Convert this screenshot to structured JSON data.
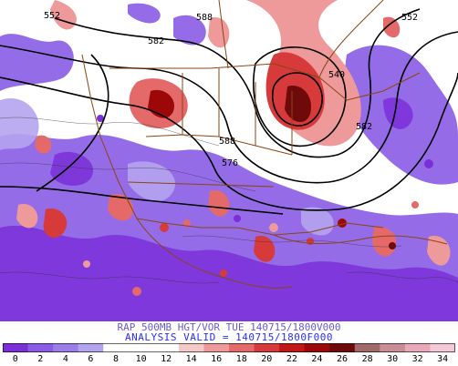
{
  "title": {
    "line1": "RAP 500MB HGT/VOR TUE 140715/1800V000",
    "line2": "ANALYSIS VALID = 140715/1800F000"
  },
  "colors": {
    "map_background": "#ffffff",
    "contour": "#000000",
    "borders": "#8b4513",
    "title_line1": "#6a5acd",
    "title_line2": "#2c2cff"
  },
  "colorbar": {
    "labels": [
      "0",
      "2",
      "4",
      "6",
      "8",
      "10",
      "12",
      "14",
      "16",
      "18",
      "20",
      "22",
      "24",
      "26",
      "28",
      "30",
      "32",
      "34"
    ],
    "colors": [
      "#7b2fd8",
      "#8a5ce6",
      "#9b7de8",
      "#b4a4ee",
      "#ffffff",
      "#ffffff",
      "#ffffff",
      "#f6c9c9",
      "#ee9a9a",
      "#e46a6a",
      "#d63a3a",
      "#c01818",
      "#9c0808",
      "#6e0a0a",
      "#a06a6a",
      "#c88e96",
      "#e8aab8",
      "#f5c8d8"
    ]
  },
  "contour_labels": [
    "552",
    "582",
    "588",
    "576",
    "588",
    "582",
    "552",
    "540"
  ]
}
